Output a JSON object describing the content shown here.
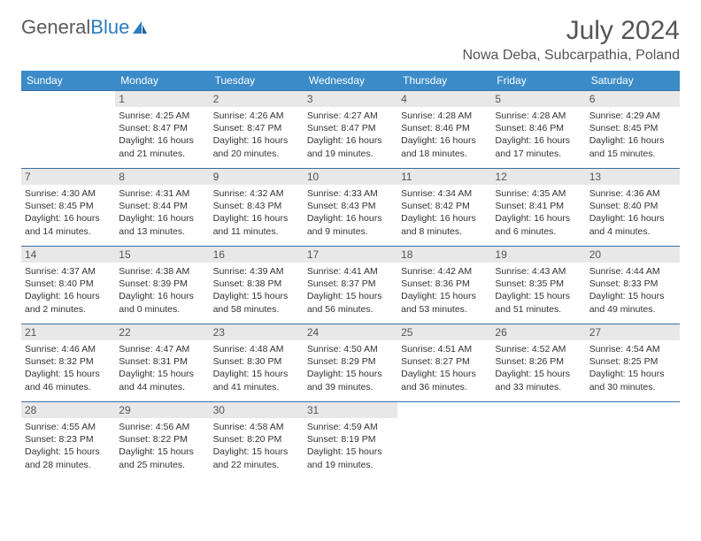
{
  "brand": {
    "part1": "General",
    "part2": "Blue"
  },
  "title": "July 2024",
  "location": "Nowa Deba, Subcarpathia, Poland",
  "colors": {
    "header_bg": "#3b8bc8",
    "row_border": "#3b6fa0",
    "daynum_bg": "#e8e8e8",
    "brand_blue": "#2b7bbf"
  },
  "day_headers": [
    "Sunday",
    "Monday",
    "Tuesday",
    "Wednesday",
    "Thursday",
    "Friday",
    "Saturday"
  ],
  "weeks": [
    [
      {
        "n": "",
        "lines": []
      },
      {
        "n": "1",
        "lines": [
          "Sunrise: 4:25 AM",
          "Sunset: 8:47 PM",
          "Daylight: 16 hours and 21 minutes."
        ]
      },
      {
        "n": "2",
        "lines": [
          "Sunrise: 4:26 AM",
          "Sunset: 8:47 PM",
          "Daylight: 16 hours and 20 minutes."
        ]
      },
      {
        "n": "3",
        "lines": [
          "Sunrise: 4:27 AM",
          "Sunset: 8:47 PM",
          "Daylight: 16 hours and 19 minutes."
        ]
      },
      {
        "n": "4",
        "lines": [
          "Sunrise: 4:28 AM",
          "Sunset: 8:46 PM",
          "Daylight: 16 hours and 18 minutes."
        ]
      },
      {
        "n": "5",
        "lines": [
          "Sunrise: 4:28 AM",
          "Sunset: 8:46 PM",
          "Daylight: 16 hours and 17 minutes."
        ]
      },
      {
        "n": "6",
        "lines": [
          "Sunrise: 4:29 AM",
          "Sunset: 8:45 PM",
          "Daylight: 16 hours and 15 minutes."
        ]
      }
    ],
    [
      {
        "n": "7",
        "lines": [
          "Sunrise: 4:30 AM",
          "Sunset: 8:45 PM",
          "Daylight: 16 hours and 14 minutes."
        ]
      },
      {
        "n": "8",
        "lines": [
          "Sunrise: 4:31 AM",
          "Sunset: 8:44 PM",
          "Daylight: 16 hours and 13 minutes."
        ]
      },
      {
        "n": "9",
        "lines": [
          "Sunrise: 4:32 AM",
          "Sunset: 8:43 PM",
          "Daylight: 16 hours and 11 minutes."
        ]
      },
      {
        "n": "10",
        "lines": [
          "Sunrise: 4:33 AM",
          "Sunset: 8:43 PM",
          "Daylight: 16 hours and 9 minutes."
        ]
      },
      {
        "n": "11",
        "lines": [
          "Sunrise: 4:34 AM",
          "Sunset: 8:42 PM",
          "Daylight: 16 hours and 8 minutes."
        ]
      },
      {
        "n": "12",
        "lines": [
          "Sunrise: 4:35 AM",
          "Sunset: 8:41 PM",
          "Daylight: 16 hours and 6 minutes."
        ]
      },
      {
        "n": "13",
        "lines": [
          "Sunrise: 4:36 AM",
          "Sunset: 8:40 PM",
          "Daylight: 16 hours and 4 minutes."
        ]
      }
    ],
    [
      {
        "n": "14",
        "lines": [
          "Sunrise: 4:37 AM",
          "Sunset: 8:40 PM",
          "Daylight: 16 hours and 2 minutes."
        ]
      },
      {
        "n": "15",
        "lines": [
          "Sunrise: 4:38 AM",
          "Sunset: 8:39 PM",
          "Daylight: 16 hours and 0 minutes."
        ]
      },
      {
        "n": "16",
        "lines": [
          "Sunrise: 4:39 AM",
          "Sunset: 8:38 PM",
          "Daylight: 15 hours and 58 minutes."
        ]
      },
      {
        "n": "17",
        "lines": [
          "Sunrise: 4:41 AM",
          "Sunset: 8:37 PM",
          "Daylight: 15 hours and 56 minutes."
        ]
      },
      {
        "n": "18",
        "lines": [
          "Sunrise: 4:42 AM",
          "Sunset: 8:36 PM",
          "Daylight: 15 hours and 53 minutes."
        ]
      },
      {
        "n": "19",
        "lines": [
          "Sunrise: 4:43 AM",
          "Sunset: 8:35 PM",
          "Daylight: 15 hours and 51 minutes."
        ]
      },
      {
        "n": "20",
        "lines": [
          "Sunrise: 4:44 AM",
          "Sunset: 8:33 PM",
          "Daylight: 15 hours and 49 minutes."
        ]
      }
    ],
    [
      {
        "n": "21",
        "lines": [
          "Sunrise: 4:46 AM",
          "Sunset: 8:32 PM",
          "Daylight: 15 hours and 46 minutes."
        ]
      },
      {
        "n": "22",
        "lines": [
          "Sunrise: 4:47 AM",
          "Sunset: 8:31 PM",
          "Daylight: 15 hours and 44 minutes."
        ]
      },
      {
        "n": "23",
        "lines": [
          "Sunrise: 4:48 AM",
          "Sunset: 8:30 PM",
          "Daylight: 15 hours and 41 minutes."
        ]
      },
      {
        "n": "24",
        "lines": [
          "Sunrise: 4:50 AM",
          "Sunset: 8:29 PM",
          "Daylight: 15 hours and 39 minutes."
        ]
      },
      {
        "n": "25",
        "lines": [
          "Sunrise: 4:51 AM",
          "Sunset: 8:27 PM",
          "Daylight: 15 hours and 36 minutes."
        ]
      },
      {
        "n": "26",
        "lines": [
          "Sunrise: 4:52 AM",
          "Sunset: 8:26 PM",
          "Daylight: 15 hours and 33 minutes."
        ]
      },
      {
        "n": "27",
        "lines": [
          "Sunrise: 4:54 AM",
          "Sunset: 8:25 PM",
          "Daylight: 15 hours and 30 minutes."
        ]
      }
    ],
    [
      {
        "n": "28",
        "lines": [
          "Sunrise: 4:55 AM",
          "Sunset: 8:23 PM",
          "Daylight: 15 hours and 28 minutes."
        ]
      },
      {
        "n": "29",
        "lines": [
          "Sunrise: 4:56 AM",
          "Sunset: 8:22 PM",
          "Daylight: 15 hours and 25 minutes."
        ]
      },
      {
        "n": "30",
        "lines": [
          "Sunrise: 4:58 AM",
          "Sunset: 8:20 PM",
          "Daylight: 15 hours and 22 minutes."
        ]
      },
      {
        "n": "31",
        "lines": [
          "Sunrise: 4:59 AM",
          "Sunset: 8:19 PM",
          "Daylight: 15 hours and 19 minutes."
        ]
      },
      {
        "n": "",
        "lines": []
      },
      {
        "n": "",
        "lines": []
      },
      {
        "n": "",
        "lines": []
      }
    ]
  ]
}
